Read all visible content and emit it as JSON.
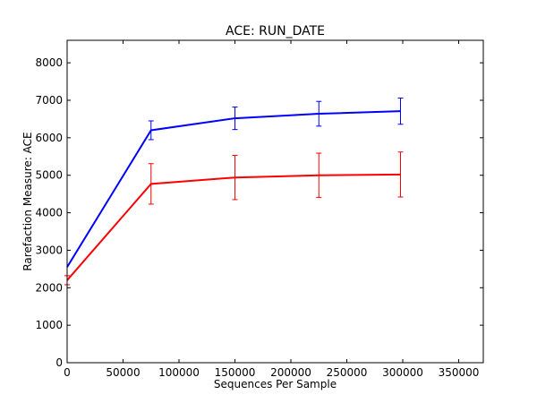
{
  "chart_data": {
    "type": "line",
    "title": "ACE: RUN_DATE",
    "xlabel": "Sequences Per Sample",
    "ylabel": "Rarefaction Measure: ACE",
    "xlim": [
      0,
      372000
    ],
    "ylim": [
      0,
      8600
    ],
    "xticks": [
      0,
      50000,
      100000,
      150000,
      200000,
      250000,
      300000,
      350000
    ],
    "yticks": [
      0,
      1000,
      2000,
      3000,
      4000,
      5000,
      6000,
      7000,
      8000
    ],
    "grid": false,
    "legend": "none",
    "x": [
      10,
      75000,
      150000,
      225000,
      298000
    ],
    "series": [
      {
        "color": "#0000ff",
        "values": [
          2550,
          6200,
          6520,
          6640,
          6710
        ],
        "errors": [
          0,
          250,
          300,
          330,
          350
        ]
      },
      {
        "color": "#ff0000",
        "values": [
          2200,
          4770,
          4940,
          5000,
          5020
        ],
        "errors": [
          120,
          540,
          590,
          590,
          600
        ]
      }
    ]
  }
}
